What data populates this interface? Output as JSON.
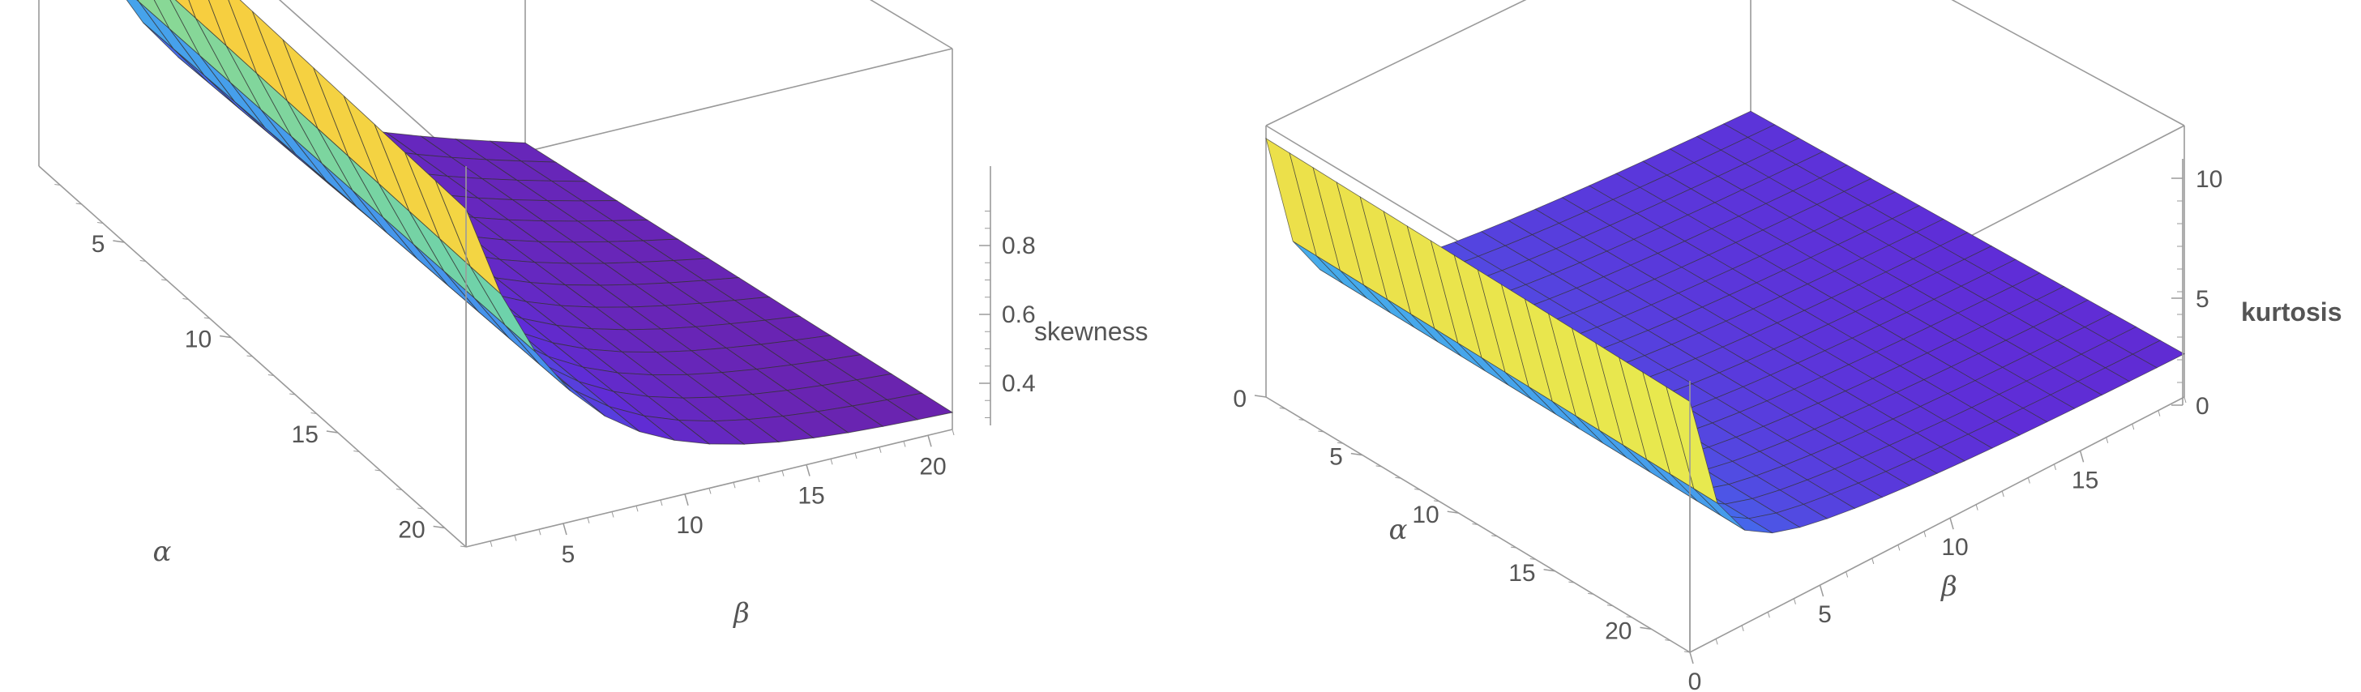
{
  "chart_data": [
    {
      "type": "surface3d",
      "title": "",
      "x_axis": {
        "label": "α",
        "ticks": [
          "5",
          "10",
          "15",
          "20"
        ],
        "range": [
          1,
          21
        ]
      },
      "y_axis": {
        "label": "β",
        "ticks": [
          "5",
          "10",
          "15",
          "20"
        ],
        "range": [
          1,
          21
        ]
      },
      "z_axis": {
        "label": "skewness",
        "ticks": [
          "0.4",
          "0.6",
          "0.8"
        ],
        "range": [
          0.25,
          1.05
        ]
      },
      "grid": "14x14 mesh",
      "colormap": "rainbow",
      "surface": "skewness decreases with β; near 0.95 at β≈1, about 0.28 at β≈21"
    },
    {
      "type": "surface3d",
      "title": "",
      "x_axis": {
        "label": "α",
        "ticks": [
          "0",
          "5",
          "10",
          "15",
          "20"
        ],
        "range": [
          0,
          22
        ]
      },
      "y_axis": {
        "label": "β",
        "ticks": [
          "0",
          "5",
          "10",
          "15"
        ],
        "range": [
          0,
          19
        ]
      },
      "z_axis": {
        "label": "kurtosis",
        "ticks": [
          "0",
          "5",
          "10"
        ],
        "range": [
          0,
          10.5
        ]
      },
      "grid": "18x18 mesh",
      "colormap": "rainbow",
      "surface": "kurtosis ≈ 10 at β≈0, falling sharply to ≈3 and then slowly to ≈1.5 at β≈19"
    }
  ],
  "colors": {
    "frame": "#9a9a9a",
    "text": "#555555",
    "mesh": "#333333"
  }
}
